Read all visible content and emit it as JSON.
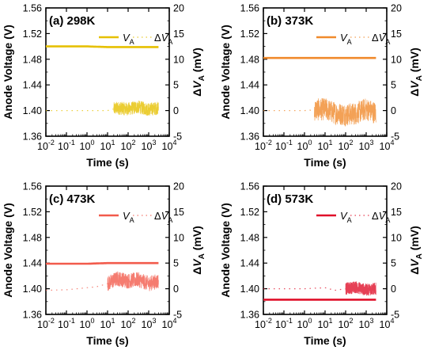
{
  "chart_data": [
    {
      "type": "line",
      "panel_label": "(a) 298K",
      "color": "#e6c000",
      "legend": [
        {
          "name": "V",
          "sub": "A"
        },
        {
          "name": "ΔV",
          "sub": "A"
        }
      ],
      "xlabel": "Time (s)",
      "ylabel_left": "Anode Voltage (V)",
      "ylabel_right": {
        "prefix": "ΔV",
        "sub": "A",
        "suffix": " (mV)"
      },
      "x_scale": "log",
      "xlim": [
        0.01,
        10000
      ],
      "xtick_labels": [
        [
          "10",
          "-2"
        ],
        [
          "10",
          "-1"
        ],
        [
          "10",
          "0"
        ],
        [
          "10",
          "1"
        ],
        [
          "10",
          "2"
        ],
        [
          "10",
          "3"
        ],
        [
          "10",
          "4"
        ]
      ],
      "ylim_left": [
        1.36,
        1.56
      ],
      "yticks_left": [
        "1.36",
        "1.40",
        "1.44",
        "1.48",
        "1.52",
        "1.56"
      ],
      "ylim_right": [
        -5,
        20
      ],
      "yticks_right": [
        "-5",
        "0",
        "5",
        "10",
        "15",
        "20"
      ],
      "series": [
        {
          "name": "VA",
          "axis": "left",
          "x": [
            0.01,
            0.1,
            1,
            10,
            100,
            1000,
            3000
          ],
          "y": [
            1.5,
            1.5,
            1.5,
            1.499,
            1.499,
            1.499,
            1.499
          ]
        },
        {
          "name": "ΔVA",
          "axis": "right",
          "x": [
            0.01,
            0.1,
            1,
            10,
            30,
            100,
            300,
            1000,
            3000
          ],
          "y": [
            0,
            0,
            0,
            0,
            0.5,
            0.3,
            0.7,
            0.2,
            0.5
          ],
          "noise_from": 20,
          "noise_amp": 1.3
        }
      ]
    },
    {
      "type": "line",
      "panel_label": "(b) 373K",
      "color": "#f08a2c",
      "legend": [
        {
          "name": "V",
          "sub": "A"
        },
        {
          "name": "ΔV",
          "sub": "A"
        }
      ],
      "xlabel": "Time (s)",
      "ylabel_left": "Anode Voltage (V)",
      "ylabel_right": {
        "prefix": "ΔV",
        "sub": "A",
        "suffix": " (mV)"
      },
      "x_scale": "log",
      "xlim": [
        0.01,
        10000
      ],
      "xtick_labels": [
        [
          "10",
          "-2"
        ],
        [
          "10",
          "-1"
        ],
        [
          "10",
          "0"
        ],
        [
          "10",
          "1"
        ],
        [
          "10",
          "2"
        ],
        [
          "10",
          "3"
        ],
        [
          "10",
          "4"
        ]
      ],
      "ylim_left": [
        1.36,
        1.56
      ],
      "yticks_left": [
        "1.36",
        "1.40",
        "1.44",
        "1.48",
        "1.52",
        "1.56"
      ],
      "ylim_right": [
        -5,
        20
      ],
      "yticks_right": [
        "-5",
        "0",
        "5",
        "10",
        "15",
        "20"
      ],
      "series": [
        {
          "name": "VA",
          "axis": "left",
          "x": [
            0.01,
            0.1,
            1,
            10,
            100,
            1000,
            3000
          ],
          "y": [
            1.482,
            1.482,
            1.482,
            1.482,
            1.482,
            1.482,
            1.482
          ]
        },
        {
          "name": "ΔVA",
          "axis": "right",
          "x": [
            0.01,
            0.1,
            1,
            5,
            10,
            30,
            100,
            300,
            1000,
            3000
          ],
          "y": [
            0,
            0,
            0,
            0.2,
            0.3,
            -0.5,
            -0.8,
            -0.6,
            0.3,
            -0.5
          ],
          "noise_from": 3,
          "noise_amp": 2.2
        }
      ]
    },
    {
      "type": "line",
      "panel_label": "(c) 473K",
      "color": "#f25b4c",
      "legend": [
        {
          "name": "V",
          "sub": "A"
        },
        {
          "name": "ΔV",
          "sub": "A"
        }
      ],
      "xlabel": "Time (s)",
      "ylabel_left": "Anode Voltage (V)",
      "ylabel_right": {
        "prefix": "ΔV",
        "sub": "A",
        "suffix": " (mV)"
      },
      "x_scale": "log",
      "xlim": [
        0.01,
        10000
      ],
      "xtick_labels": [
        [
          "10",
          "-2"
        ],
        [
          "10",
          "-1"
        ],
        [
          "10",
          "0"
        ],
        [
          "10",
          "1"
        ],
        [
          "10",
          "2"
        ],
        [
          "10",
          "3"
        ],
        [
          "10",
          "4"
        ]
      ],
      "ylim_left": [
        1.36,
        1.56
      ],
      "yticks_left": [
        "1.36",
        "1.40",
        "1.44",
        "1.48",
        "1.52",
        "1.56"
      ],
      "ylim_right": [
        -5,
        20
      ],
      "yticks_right": [
        "-5",
        "0",
        "5",
        "10",
        "15",
        "20"
      ],
      "series": [
        {
          "name": "VA",
          "axis": "left",
          "x": [
            0.01,
            0.1,
            1,
            10,
            100,
            1000,
            3000
          ],
          "y": [
            1.439,
            1.439,
            1.439,
            1.44,
            1.44,
            1.44,
            1.44
          ]
        },
        {
          "name": "ΔVA",
          "axis": "right",
          "x": [
            0.01,
            0.1,
            1,
            3,
            10,
            30,
            100,
            300,
            1000,
            3000
          ],
          "y": [
            -0.3,
            -0.2,
            0.2,
            0.4,
            1.0,
            2.0,
            1.5,
            1.8,
            1.0,
            1.5
          ],
          "noise_from": 10,
          "noise_amp": 1.5
        }
      ]
    },
    {
      "type": "line",
      "panel_label": "(d) 573K",
      "color": "#e0102a",
      "legend": [
        {
          "name": "V",
          "sub": "A"
        },
        {
          "name": "ΔV",
          "sub": "A"
        }
      ],
      "xlabel": "Time (s)",
      "ylabel_left": "Anode Voltage (V)",
      "ylabel_right": {
        "prefix": "ΔV",
        "sub": "A",
        "suffix": " (mV)"
      },
      "x_scale": "log",
      "xlim": [
        0.01,
        10000
      ],
      "xtick_labels": [
        [
          "10",
          "-2"
        ],
        [
          "10",
          "-1"
        ],
        [
          "10",
          "0"
        ],
        [
          "10",
          "1"
        ],
        [
          "10",
          "2"
        ],
        [
          "10",
          "3"
        ],
        [
          "10",
          "4"
        ]
      ],
      "ylim_left": [
        1.36,
        1.56
      ],
      "yticks_left": [
        "1.36",
        "1.40",
        "1.44",
        "1.48",
        "1.52",
        "1.56"
      ],
      "ylim_right": [
        -5,
        20
      ],
      "yticks_right": [
        "-5",
        "0",
        "5",
        "10",
        "15",
        "20"
      ],
      "series": [
        {
          "name": "VA",
          "axis": "left",
          "x": [
            0.01,
            0.1,
            1,
            10,
            100,
            1000,
            3000
          ],
          "y": [
            1.383,
            1.383,
            1.383,
            1.383,
            1.383,
            1.383,
            1.383
          ]
        },
        {
          "name": "ΔVA",
          "axis": "right",
          "x": [
            0.01,
            0.1,
            1,
            10,
            30,
            100,
            300,
            1000,
            3000
          ],
          "y": [
            0,
            0,
            0,
            0.2,
            -0.3,
            0,
            0.3,
            -0.2,
            0
          ],
          "noise_from": 100,
          "noise_amp": 1.2
        }
      ]
    }
  ]
}
